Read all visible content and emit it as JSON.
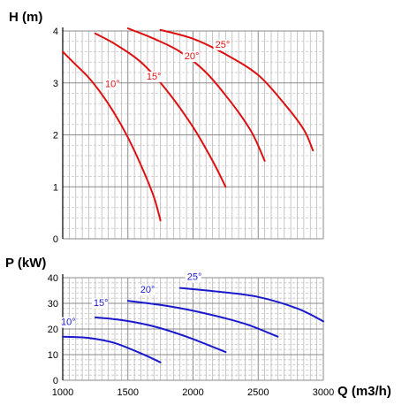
{
  "chart_data": [
    {
      "type": "line",
      "ylabel": "H (m)",
      "xlim": [
        1000,
        3000
      ],
      "ylim": [
        0,
        4
      ],
      "xticks": [
        1000,
        1500,
        2000,
        2500,
        3000
      ],
      "yticks": [
        0,
        1,
        2,
        3,
        4
      ],
      "grid": true,
      "line_color": "#dd1111",
      "series": [
        {
          "name": "10°",
          "x": [
            1000,
            1100,
            1200,
            1300,
            1400,
            1500,
            1600,
            1700,
            1750
          ],
          "y": [
            3.6,
            3.35,
            3.1,
            2.78,
            2.4,
            1.95,
            1.42,
            0.8,
            0.35
          ]
        },
        {
          "name": "15°",
          "x": [
            1250,
            1400,
            1600,
            1800,
            2000,
            2150,
            2250
          ],
          "y": [
            3.95,
            3.75,
            3.4,
            2.85,
            2.15,
            1.5,
            1.0
          ]
        },
        {
          "name": "20°",
          "x": [
            1500,
            1700,
            1900,
            2100,
            2300,
            2450,
            2550
          ],
          "y": [
            4.05,
            3.85,
            3.6,
            3.2,
            2.6,
            2.05,
            1.5
          ]
        },
        {
          "name": "25°",
          "x": [
            1750,
            2000,
            2250,
            2500,
            2700,
            2850,
            2920
          ],
          "y": [
            4.02,
            3.85,
            3.55,
            3.15,
            2.6,
            2.1,
            1.7
          ]
        }
      ]
    },
    {
      "type": "line",
      "xlabel": "Q (m3/h)",
      "ylabel": "P (kW)",
      "xlim": [
        1000,
        3000
      ],
      "ylim": [
        0,
        40
      ],
      "xticks": [
        1000,
        1500,
        2000,
        2500,
        3000
      ],
      "yticks": [
        0,
        10,
        20,
        30,
        40
      ],
      "grid": true,
      "line_color": "#1a1acc",
      "series": [
        {
          "name": "10°",
          "x": [
            1000,
            1200,
            1400,
            1600,
            1750
          ],
          "y": [
            17,
            16.5,
            14.5,
            10.5,
            7
          ]
        },
        {
          "name": "15°",
          "x": [
            1250,
            1450,
            1700,
            1950,
            2250
          ],
          "y": [
            24.5,
            23.5,
            21,
            17,
            11
          ]
        },
        {
          "name": "20°",
          "x": [
            1500,
            1800,
            2100,
            2400,
            2650
          ],
          "y": [
            31,
            29,
            26,
            22,
            17
          ]
        },
        {
          "name": "25°",
          "x": [
            1900,
            2200,
            2500,
            2800,
            3000
          ],
          "y": [
            36,
            34.5,
            32.5,
            28,
            23
          ]
        }
      ]
    }
  ]
}
